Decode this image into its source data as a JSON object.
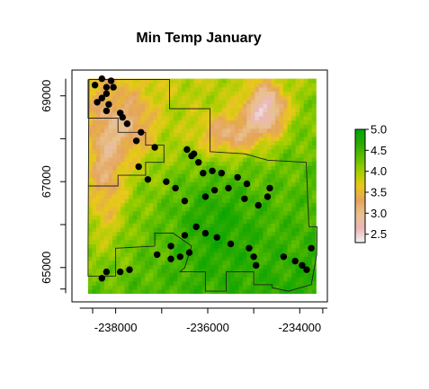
{
  "chart_data": {
    "type": "heatmap",
    "title": "Min Temp January",
    "xlabel": "",
    "ylabel": "",
    "xlim": [
      -238950,
      -233400
    ],
    "ylim": [
      64200,
      69600
    ],
    "x_ticks": [
      -238000,
      -236000,
      -234000
    ],
    "x_tick_labels": [
      "-238000",
      "-236000",
      "-234000"
    ],
    "y_ticks": [
      65000,
      67000,
      69000
    ],
    "y_tick_labels": [
      "65000",
      "67000",
      "69000"
    ],
    "raster_extent": {
      "x": [
        -238600,
        -233650
      ],
      "y": [
        64400,
        69400
      ]
    },
    "colorbar": {
      "min": 2.3,
      "max": 5.0,
      "ticks": [
        2.5,
        3.0,
        3.5,
        4.0,
        4.5,
        5.0
      ],
      "tick_labels": [
        "2.5",
        "3.0",
        "3.5",
        "4.0",
        "4.5",
        "5.0"
      ],
      "colors": [
        "#f2f2f2",
        "#ebb7b7",
        "#e8c28e",
        "#e5a35c",
        "#e8c91a",
        "#a6cf00",
        "#5fbf00",
        "#2aaa00",
        "#00a600"
      ]
    },
    "boundary_polygon": [
      [
        -238580,
        69380
      ],
      [
        -236830,
        69380
      ],
      [
        -236830,
        68700
      ],
      [
        -235950,
        68700
      ],
      [
        -235950,
        67700
      ],
      [
        -235200,
        67650
      ],
      [
        -234700,
        67500
      ],
      [
        -233860,
        67450
      ],
      [
        -233800,
        65950
      ],
      [
        -233620,
        65950
      ],
      [
        -233630,
        65300
      ],
      [
        -233750,
        64600
      ],
      [
        -234250,
        64450
      ],
      [
        -234600,
        64530
      ],
      [
        -234600,
        64600
      ],
      [
        -235000,
        64600
      ],
      [
        -235000,
        64900
      ],
      [
        -235600,
        64900
      ],
      [
        -235600,
        64450
      ],
      [
        -236050,
        64450
      ],
      [
        -236050,
        64900
      ],
      [
        -236600,
        64900
      ],
      [
        -236500,
        65000
      ],
      [
        -236350,
        65500
      ],
      [
        -236750,
        65800
      ],
      [
        -237150,
        65800
      ],
      [
        -237150,
        65500
      ],
      [
        -238000,
        65450
      ],
      [
        -238000,
        64800
      ],
      [
        -238600,
        64800
      ],
      [
        -238600,
        65450
      ]
    ],
    "inner_notch": [
      [
        -238600,
        69380
      ],
      [
        -238600,
        68480
      ],
      [
        -237950,
        68480
      ],
      [
        -237950,
        68150
      ],
      [
        -237350,
        68150
      ],
      [
        -237350,
        67850
      ],
      [
        -236950,
        67850
      ],
      [
        -236950,
        67450
      ],
      [
        -237350,
        67450
      ],
      [
        -237350,
        67150
      ],
      [
        -237950,
        67150
      ],
      [
        -237950,
        66900
      ],
      [
        -238600,
        66900
      ]
    ],
    "series": [
      {
        "name": "",
        "type": "scatter",
        "points": [
          [
            -238300,
            69400
          ],
          [
            -238100,
            69350
          ],
          [
            -238450,
            69250
          ],
          [
            -238200,
            69200
          ],
          [
            -238050,
            69200
          ],
          [
            -238200,
            69050
          ],
          [
            -238300,
            68950
          ],
          [
            -238150,
            68800
          ],
          [
            -238200,
            68650
          ],
          [
            -237900,
            68600
          ],
          [
            -237850,
            68500
          ],
          [
            -237750,
            68350
          ],
          [
            -238400,
            68850
          ],
          [
            -237550,
            67950
          ],
          [
            -237450,
            68150
          ],
          [
            -237150,
            67800
          ],
          [
            -236450,
            67750
          ],
          [
            -236300,
            67650
          ],
          [
            -236350,
            67600
          ],
          [
            -236200,
            67450
          ],
          [
            -236100,
            67200
          ],
          [
            -235900,
            67250
          ],
          [
            -235700,
            67200
          ],
          [
            -235350,
            67100
          ],
          [
            -235150,
            66950
          ],
          [
            -234700,
            66650
          ],
          [
            -234650,
            66850
          ],
          [
            -234900,
            66450
          ],
          [
            -235200,
            66600
          ],
          [
            -235550,
            66850
          ],
          [
            -235850,
            66800
          ],
          [
            -236050,
            66650
          ],
          [
            -236500,
            66550
          ],
          [
            -237500,
            67350
          ],
          [
            -237300,
            67050
          ],
          [
            -236900,
            67000
          ],
          [
            -236700,
            66850
          ],
          [
            -236250,
            65950
          ],
          [
            -236050,
            65800
          ],
          [
            -235800,
            65700
          ],
          [
            -235500,
            65550
          ],
          [
            -235100,
            65450
          ],
          [
            -235000,
            65250
          ],
          [
            -234950,
            65050
          ],
          [
            -234350,
            65250
          ],
          [
            -234100,
            65150
          ],
          [
            -233950,
            65050
          ],
          [
            -233850,
            64950
          ],
          [
            -233750,
            65450
          ],
          [
            -236400,
            65350
          ],
          [
            -236600,
            65250
          ],
          [
            -236800,
            65200
          ],
          [
            -237700,
            64950
          ],
          [
            -237900,
            64900
          ],
          [
            -238300,
            64750
          ],
          [
            -238200,
            64900
          ],
          [
            -236500,
            65750
          ],
          [
            -236800,
            65500
          ],
          [
            -237100,
            65300
          ]
        ]
      }
    ]
  }
}
